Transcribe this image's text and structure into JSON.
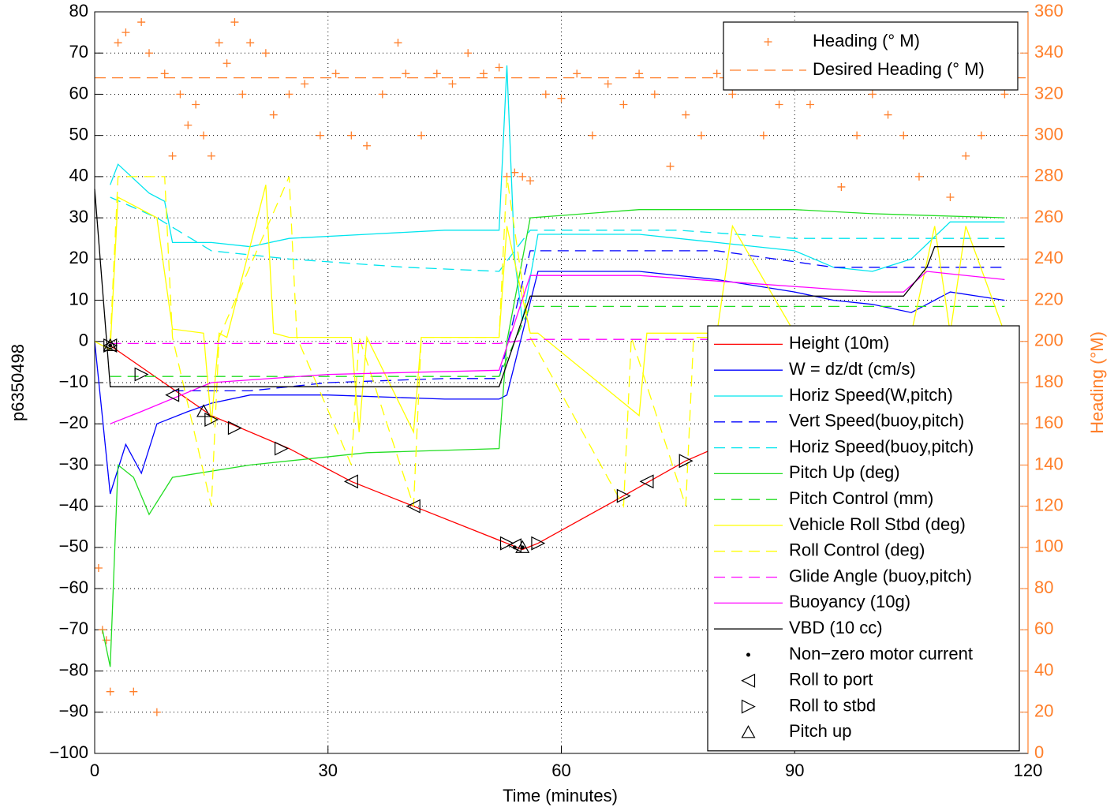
{
  "chart_data": {
    "type": "line",
    "xlabel": "Time (minutes)",
    "ylabel": "p6350498",
    "y2label": "Heading (°M)",
    "xlim": [
      0,
      120
    ],
    "xticks": [
      0,
      30,
      60,
      90,
      120
    ],
    "ylim": [
      -100,
      80
    ],
    "yticks": [
      {
        "value": -100,
        "label": "−100"
      },
      {
        "value": -90,
        "label": "−90"
      },
      {
        "value": -80,
        "label": "−80"
      },
      {
        "value": -70,
        "label": "−70"
      },
      {
        "value": -60,
        "label": "−60"
      },
      {
        "value": -50,
        "label": "−50"
      },
      {
        "value": -40,
        "label": "−40"
      },
      {
        "value": -30,
        "label": "−30"
      },
      {
        "value": -20,
        "label": "−20"
      },
      {
        "value": -10,
        "label": "−10"
      },
      0,
      10,
      20,
      30,
      40,
      50,
      60,
      70,
      80
    ],
    "y2lim": [
      0,
      360
    ],
    "y2ticks": [
      0,
      20,
      40,
      60,
      80,
      100,
      120,
      140,
      160,
      180,
      200,
      220,
      240,
      260,
      280,
      300,
      320,
      340,
      360
    ],
    "grid": true,
    "axis_color_y2": "#ff7f2a",
    "series": [
      {
        "name": "Heading (° M)",
        "color": "#ff7f2a",
        "style": "markers",
        "marker": "+",
        "axis": "y2",
        "x": [
          0.5,
          1,
          1.5,
          2,
          3,
          4,
          5,
          6,
          7,
          8,
          9,
          10,
          11,
          12,
          13,
          14,
          15,
          16,
          17,
          18,
          19,
          20,
          22,
          23,
          25,
          27,
          29,
          31,
          33,
          35,
          37,
          39,
          40,
          42,
          44,
          46,
          48,
          50,
          52,
          53,
          54,
          55,
          56,
          58,
          60,
          62,
          64,
          66,
          68,
          70,
          72,
          74,
          76,
          78,
          80,
          82,
          84,
          86,
          88,
          90,
          92,
          94,
          96,
          98,
          100,
          102,
          104,
          106,
          108,
          110,
          112,
          114,
          116,
          117
        ],
        "values": [
          90,
          60,
          55,
          30,
          345,
          350,
          30,
          355,
          340,
          20,
          330,
          290,
          320,
          305,
          315,
          300,
          290,
          345,
          335,
          355,
          320,
          345,
          340,
          310,
          320,
          325,
          300,
          330,
          300,
          295,
          320,
          345,
          330,
          300,
          330,
          325,
          340,
          330,
          333,
          280,
          282,
          280,
          278,
          320,
          318,
          330,
          300,
          325,
          315,
          330,
          320,
          285,
          310,
          300,
          330,
          320,
          340,
          300,
          315,
          335,
          315,
          340,
          275,
          300,
          320,
          310,
          300,
          280,
          330,
          270,
          290,
          300,
          340,
          320
        ]
      },
      {
        "name": "Desired Heading (° M)",
        "color": "#ff7f2a",
        "style": "dashed",
        "axis": "y2",
        "x": [
          0,
          120
        ],
        "values": [
          328,
          328
        ]
      },
      {
        "name": "Height (10m)",
        "color": "#ff0000",
        "style": "solid",
        "x": [
          2,
          15,
          25,
          33,
          41,
          53,
          55,
          57,
          68,
          76,
          90,
          105,
          117
        ],
        "values": [
          -1,
          -18,
          -26,
          -34,
          -40,
          -49,
          -50.5,
          -49,
          -37.5,
          -29,
          -17.5,
          -9,
          -1
        ]
      },
      {
        "name": "W = dz/dt (cm/s)",
        "color": "#0000ff",
        "style": "solid",
        "x": [
          0,
          2,
          4,
          6,
          8,
          12,
          15,
          20,
          30,
          45,
          52,
          53,
          57,
          70,
          80,
          90,
          95,
          100,
          105,
          110,
          117
        ],
        "values": [
          0,
          -37,
          -25,
          -32,
          -20,
          -17,
          -15,
          -13,
          -13,
          -14,
          -14,
          -13,
          17,
          17,
          15,
          12,
          10,
          9,
          7,
          12,
          10
        ]
      },
      {
        "name": "Horiz Speed(W,pitch)",
        "color": "#00e5ee",
        "style": "solid",
        "x": [
          2,
          3,
          7,
          9,
          10,
          15,
          20,
          25,
          35,
          45,
          52,
          53,
          54,
          55,
          57,
          70,
          80,
          90,
          95,
          100,
          105,
          110,
          117
        ],
        "values": [
          38,
          43,
          36,
          34,
          24,
          24,
          23,
          25,
          26,
          27,
          27,
          67,
          20,
          5,
          26,
          26,
          24,
          22,
          18,
          17,
          20,
          29,
          29
        ]
      },
      {
        "name": "Vert Speed(buoy,pitch)",
        "color": "#0000ff",
        "style": "dashed",
        "x": [
          10,
          20,
          30,
          45,
          52,
          56,
          70,
          80,
          95,
          117
        ],
        "values": [
          -12,
          -12,
          -10,
          -9,
          -9,
          22,
          22,
          22,
          18,
          18
        ]
      },
      {
        "name": "Horiz Speed(buoy,pitch)",
        "color": "#00e5ee",
        "style": "dashed",
        "x": [
          2,
          8,
          15,
          25,
          40,
          52,
          56,
          75,
          90,
          117
        ],
        "values": [
          35,
          30,
          22,
          20,
          18,
          17,
          27,
          27,
          25,
          25
        ]
      },
      {
        "name": "Pitch Up (deg)",
        "color": "#22dd22",
        "style": "solid",
        "x": [
          1,
          2,
          3,
          5,
          7,
          10,
          20,
          35,
          52,
          53,
          56,
          70,
          90,
          100,
          117
        ],
        "values": [
          -70,
          -79,
          -30,
          -33,
          -42,
          -33,
          -30,
          -27,
          -26,
          0,
          30,
          32,
          32,
          31,
          30
        ]
      },
      {
        "name": "Pitch Control (mm)",
        "color": "#22dd22",
        "style": "dashed",
        "x": [
          2,
          52,
          56,
          117
        ],
        "values": [
          -8.5,
          -8.5,
          8.5,
          8.5
        ]
      },
      {
        "name": "Vehicle Roll Stbd (deg)",
        "color": "#ffff00",
        "style": "solid",
        "x": [
          0,
          2,
          3,
          8,
          10,
          14,
          15,
          16,
          17,
          22,
          23,
          25,
          33,
          34,
          35,
          41,
          42,
          52,
          53,
          56,
          57,
          70,
          71,
          80,
          82,
          90,
          95,
          100,
          105,
          108,
          110,
          112,
          117
        ],
        "values": [
          0,
          -2,
          35,
          30,
          3,
          2,
          -20,
          2,
          1,
          38,
          2,
          1,
          1,
          -22,
          1,
          -22,
          1,
          1,
          28,
          2,
          2,
          -18,
          2,
          2,
          28,
          2,
          -18,
          2,
          2,
          28,
          2,
          28,
          2
        ]
      },
      {
        "name": "Roll Control (deg)",
        "color": "#ffff00",
        "style": "dashed",
        "x": [
          2,
          3,
          9,
          10,
          15,
          16,
          25,
          26,
          33,
          34,
          41,
          42,
          52,
          53,
          56,
          68,
          69,
          76,
          77,
          90,
          100,
          117
        ],
        "values": [
          0,
          40,
          40,
          1,
          -40,
          1,
          40,
          1,
          -30,
          1,
          -40,
          1,
          1,
          40,
          1,
          -40,
          1,
          -40,
          1,
          1,
          1,
          1
        ]
      },
      {
        "name": "Glide Angle (buoy,pitch)",
        "color": "#ff00ff",
        "style": "dashed",
        "x": [
          2,
          52,
          56,
          117
        ],
        "values": [
          -0.5,
          -0.5,
          0.5,
          0.5
        ]
      },
      {
        "name": "Buoyancy (10g)",
        "color": "#ff00ff",
        "style": "solid",
        "x": [
          2,
          6,
          15,
          30,
          52,
          56,
          70,
          85,
          100,
          104,
          107,
          117
        ],
        "values": [
          -20,
          -17,
          -10,
          -8,
          -7,
          16,
          16,
          14,
          12,
          12,
          17,
          15
        ]
      },
      {
        "name": "VBD (10 cc)",
        "color": "#000000",
        "style": "solid",
        "x": [
          0,
          2,
          52,
          56,
          104,
          107,
          108,
          117
        ],
        "values": [
          37,
          -11,
          -11,
          11,
          11,
          18,
          23,
          23
        ]
      },
      {
        "name": "Non−zero motor current",
        "color": "#000000",
        "style": "markers",
        "marker": ".",
        "x": [
          2,
          54,
          55,
          117
        ],
        "values": [
          -1,
          -50,
          -50,
          -1
        ]
      },
      {
        "name": "Roll to port",
        "color": "#000000",
        "style": "markers",
        "marker": "<",
        "x": [
          2,
          10,
          33,
          41,
          54,
          71,
          85,
          94,
          102,
          110,
          117
        ],
        "values": [
          -1,
          -13,
          -34,
          -40,
          -49.5,
          -34,
          -21,
          -15,
          -10,
          -4,
          -1
        ]
      },
      {
        "name": "Roll to stbd",
        "color": "#000000",
        "style": "markers",
        "marker": ">",
        "x": [
          2,
          6,
          15,
          18,
          24,
          53,
          57,
          68,
          76,
          80,
          90,
          104,
          112
        ],
        "values": [
          -1,
          -8,
          -19,
          -21,
          -26,
          -49,
          -49,
          -37.5,
          -29,
          -26,
          -17.5,
          -10,
          -3
        ]
      },
      {
        "name": "Pitch up",
        "color": "#000000",
        "style": "markers",
        "marker": "^",
        "x": [
          2,
          14,
          55,
          106
        ],
        "values": [
          -1,
          -17,
          -50,
          -8
        ]
      }
    ]
  }
}
